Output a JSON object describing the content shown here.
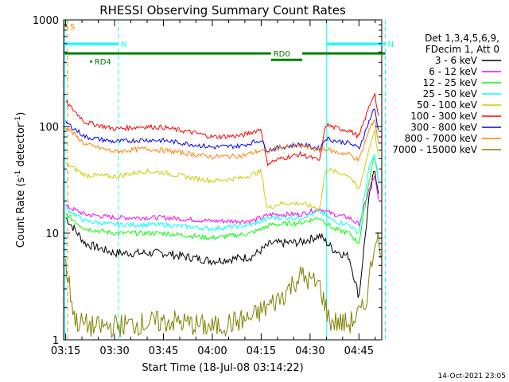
{
  "chart_data": {
    "type": "line",
    "title": "RHESSI Observing Summary Count Rates",
    "xlabel": "Start Time (18-Jul-08 03:14:22)",
    "ylabel_parts": [
      "Count Rate (s",
      "-1",
      " detector",
      "-1",
      ")"
    ],
    "timestamp": "14-Oct-2021 23:05",
    "y_scale": "log",
    "ylim": [
      1,
      1000
    ],
    "xlim": [
      "03:14:22",
      "04:52:00"
    ],
    "x_ticks": [
      "03:15",
      "03:30",
      "03:45",
      "04:00",
      "04:15",
      "04:30",
      "04:45"
    ],
    "y_ticks": [
      {
        "label": "1",
        "value": 1
      },
      {
        "label": "10",
        "value": 10
      },
      {
        "label": "100",
        "value": 100
      },
      {
        "label": "1000",
        "value": 1000
      }
    ],
    "legend": {
      "placement": "right",
      "header": [
        "Det 1,3,4,5,6,9,",
        "FDecim 1, Att 0"
      ]
    },
    "series": [
      {
        "name": "3 - 6 keV",
        "color": "#000000",
        "values": [
          [
            3.25,
            14
          ],
          [
            3.35,
            8
          ],
          [
            3.5,
            6.5
          ],
          [
            3.75,
            6.5
          ],
          [
            4.0,
            5.5
          ],
          [
            4.2,
            6
          ],
          [
            4.3,
            8
          ],
          [
            4.45,
            8.2
          ],
          [
            4.55,
            9.5
          ],
          [
            4.62,
            7
          ],
          [
            4.7,
            6
          ],
          [
            4.75,
            2.5
          ],
          [
            4.8,
            20
          ],
          [
            4.83,
            40
          ],
          [
            4.85,
            25
          ]
        ]
      },
      {
        "name": "6 - 12 keV",
        "color": "#ff00ff",
        "values": [
          [
            3.25,
            18
          ],
          [
            3.35,
            15
          ],
          [
            3.5,
            14
          ],
          [
            3.75,
            14
          ],
          [
            4.0,
            13
          ],
          [
            4.2,
            13
          ],
          [
            4.3,
            15
          ],
          [
            4.45,
            15
          ],
          [
            4.55,
            17
          ],
          [
            4.62,
            15
          ],
          [
            4.7,
            14
          ],
          [
            4.75,
            12
          ],
          [
            4.8,
            25
          ],
          [
            4.83,
            35
          ],
          [
            4.85,
            20
          ]
        ]
      },
      {
        "name": "12 - 25 keV",
        "color": "#00ff00",
        "values": [
          [
            3.25,
            15
          ],
          [
            3.35,
            11
          ],
          [
            3.5,
            10
          ],
          [
            3.75,
            10
          ],
          [
            4.0,
            9
          ],
          [
            4.2,
            10
          ],
          [
            4.3,
            12
          ],
          [
            4.45,
            12.5
          ],
          [
            4.55,
            14
          ],
          [
            4.62,
            11
          ],
          [
            4.7,
            10
          ],
          [
            4.75,
            8
          ],
          [
            4.8,
            30
          ],
          [
            4.83,
            55
          ],
          [
            4.85,
            30
          ]
        ]
      },
      {
        "name": "25 - 50 keV",
        "color": "#00ffff",
        "values": [
          [
            3.25,
            17
          ],
          [
            3.35,
            13
          ],
          [
            3.5,
            12
          ],
          [
            3.75,
            12
          ],
          [
            4.0,
            11
          ],
          [
            4.2,
            12
          ],
          [
            4.3,
            14
          ],
          [
            4.45,
            14
          ],
          [
            4.55,
            16
          ],
          [
            4.62,
            13
          ],
          [
            4.7,
            12
          ],
          [
            4.75,
            10
          ],
          [
            4.8,
            40
          ],
          [
            4.83,
            55
          ],
          [
            4.85,
            30
          ]
        ]
      },
      {
        "name": "50 - 100 keV",
        "color": "#cccc00",
        "values": [
          [
            3.25,
            45
          ],
          [
            3.35,
            35
          ],
          [
            3.5,
            34
          ],
          [
            3.65,
            38
          ],
          [
            3.75,
            37
          ],
          [
            3.9,
            33
          ],
          [
            4.0,
            31
          ],
          [
            4.15,
            33
          ],
          [
            4.25,
            38
          ],
          [
            4.28,
            17
          ],
          [
            4.35,
            19
          ],
          [
            4.45,
            19
          ],
          [
            4.55,
            17
          ],
          [
            4.58,
            40
          ],
          [
            4.62,
            38
          ],
          [
            4.7,
            35
          ],
          [
            4.75,
            25
          ],
          [
            4.8,
            60
          ],
          [
            4.83,
            95
          ],
          [
            4.85,
            50
          ]
        ]
      },
      {
        "name": "100 - 300 keV",
        "color": "#ff0000",
        "values": [
          [
            3.25,
            170
          ],
          [
            3.35,
            110
          ],
          [
            3.5,
            95
          ],
          [
            3.65,
            100
          ],
          [
            3.75,
            98
          ],
          [
            3.9,
            88
          ],
          [
            4.0,
            80
          ],
          [
            4.15,
            82
          ],
          [
            4.25,
            95
          ],
          [
            4.28,
            45
          ],
          [
            4.35,
            50
          ],
          [
            4.45,
            55
          ],
          [
            4.55,
            48
          ],
          [
            4.58,
            105
          ],
          [
            4.62,
            98
          ],
          [
            4.7,
            92
          ],
          [
            4.75,
            80
          ],
          [
            4.8,
            150
          ],
          [
            4.83,
            210
          ],
          [
            4.85,
            120
          ]
        ]
      },
      {
        "name": "300 - 800 keV",
        "color": "#0000ff",
        "values": [
          [
            3.25,
            110
          ],
          [
            3.35,
            80
          ],
          [
            3.5,
            72
          ],
          [
            3.65,
            75
          ],
          [
            3.75,
            74
          ],
          [
            3.9,
            68
          ],
          [
            4.0,
            64
          ],
          [
            4.15,
            66
          ],
          [
            4.25,
            75
          ],
          [
            4.28,
            60
          ],
          [
            4.35,
            64
          ],
          [
            4.45,
            68
          ],
          [
            4.55,
            62
          ],
          [
            4.58,
            78
          ],
          [
            4.62,
            74
          ],
          [
            4.7,
            70
          ],
          [
            4.75,
            62
          ],
          [
            4.8,
            110
          ],
          [
            4.83,
            150
          ],
          [
            4.85,
            90
          ]
        ]
      },
      {
        "name": "800 - 7000 keV",
        "color": "#ff8000",
        "values": [
          [
            3.25,
            100
          ],
          [
            3.35,
            68
          ],
          [
            3.5,
            58
          ],
          [
            3.65,
            62
          ],
          [
            3.75,
            60
          ],
          [
            3.9,
            55
          ],
          [
            4.0,
            52
          ],
          [
            4.15,
            53
          ],
          [
            4.25,
            60
          ],
          [
            4.28,
            58
          ],
          [
            4.35,
            64
          ],
          [
            4.45,
            66
          ],
          [
            4.55,
            60
          ],
          [
            4.58,
            62
          ],
          [
            4.62,
            58
          ],
          [
            4.7,
            55
          ],
          [
            4.75,
            48
          ],
          [
            4.8,
            90
          ],
          [
            4.83,
            120
          ],
          [
            4.85,
            70
          ]
        ]
      },
      {
        "name": "7000 - 15000 keV",
        "color": "#808000",
        "values": [
          [
            3.25,
            5
          ],
          [
            3.3,
            1.5
          ],
          [
            3.4,
            1.3
          ],
          [
            3.6,
            1.4
          ],
          [
            3.8,
            1.5
          ],
          [
            4.0,
            1.3
          ],
          [
            4.2,
            1.6
          ],
          [
            4.35,
            2.5
          ],
          [
            4.45,
            4
          ],
          [
            4.55,
            3.2
          ],
          [
            4.6,
            1.5
          ],
          [
            4.7,
            1.4
          ],
          [
            4.78,
            2
          ],
          [
            4.82,
            6
          ],
          [
            4.84,
            11
          ],
          [
            4.86,
            6
          ]
        ]
      }
    ],
    "state_bars": [
      {
        "label": "S",
        "color": "#ff8000",
        "y_frac": 0.0,
        "start": 3.245,
        "end": 3.26
      },
      {
        "label": "N",
        "color": "#00ffff",
        "y_frac": 0.055,
        "start": 3.245,
        "end": 3.52
      },
      {
        "label": "N",
        "color": "#00ffff",
        "y_frac": 0.055,
        "start": 4.585,
        "end": 4.885
      },
      {
        "label": "RD0",
        "color": "#008000",
        "y_frac": 0.085,
        "start": 3.245,
        "end": 4.3
      },
      {
        "label": "",
        "color": "#008000",
        "y_frac": 0.105,
        "start": 4.3,
        "end": 4.46
      },
      {
        "label": "",
        "color": "#008000",
        "y_frac": 0.085,
        "start": 4.46,
        "end": 4.885
      },
      {
        "label": "RD4",
        "color": "#008000",
        "y_frac": 0.11,
        "start": 3.375,
        "end": 3.385
      }
    ],
    "markers": [
      {
        "color": "#00ffff",
        "time": 3.245
      },
      {
        "color": "#ff8000",
        "time": 3.26
      },
      {
        "color": "#00ffff",
        "time": 3.52
      },
      {
        "color": "#00ffff",
        "time": 4.585
      },
      {
        "color": "#00ffff",
        "time": 4.885
      }
    ]
  }
}
